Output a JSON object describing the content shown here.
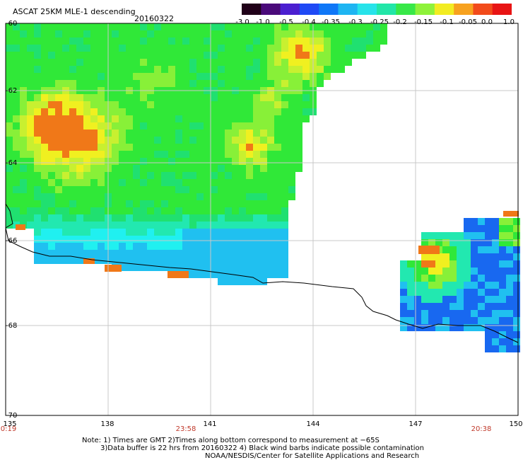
{
  "header": {
    "title": "ASCAT 25KM MLE-1 descending",
    "date": "20160322"
  },
  "colorbar": {
    "labels": [
      "-3.0",
      "-1.0",
      "-0.5",
      "-0.4",
      "-0.35",
      "-0.3",
      "-0.25",
      "-0.2",
      "-0.15",
      "-0.1",
      "-0.05",
      "0.0",
      "1.0"
    ],
    "colors": [
      "#200018",
      "#4a0a7a",
      "#4b1fd0",
      "#1f49f5",
      "#0f77f7",
      "#1eb5f2",
      "#27e3ea",
      "#22e6a8",
      "#38e848",
      "#8ef23a",
      "#f2ec22",
      "#f7a21f",
      "#f24b1b",
      "#e81414"
    ]
  },
  "map": {
    "lat_labels": [
      "-60",
      "-62",
      "-64",
      "-66",
      "-68",
      "-70"
    ],
    "lon_labels": [
      "135",
      "138",
      "141",
      "144",
      "147",
      "150"
    ],
    "time_labels": [
      "0:19",
      "23:58",
      "20:38"
    ]
  },
  "footer": {
    "note_line1": "Note: 1) Times are GMT 2)Times along bottom correspond to measurement at −65S",
    "note_line2": "3)Data buffer is 22 hrs from 20160322 4) Black wind barbs indicate possible contamination",
    "note_line3": "NOAA/NESDIS/Center for Satellite Applications and Research"
  }
}
